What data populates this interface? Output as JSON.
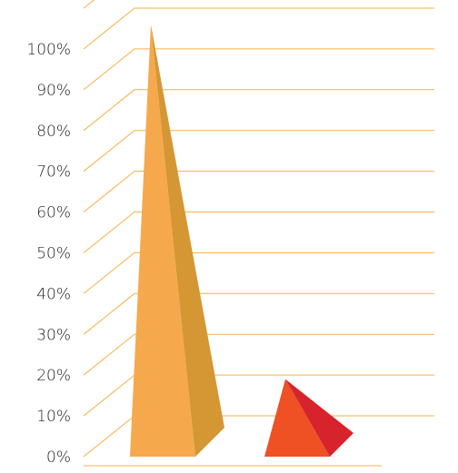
{
  "chart_data": {
    "type": "bar",
    "style": "3d-pyramid",
    "categories": [
      "",
      ""
    ],
    "values": [
      100,
      13
    ],
    "ylim": [
      0,
      100
    ],
    "y_ticks": [
      "0%",
      "10%",
      "20%",
      "30%",
      "40%",
      "50%",
      "60%",
      "70%",
      "80%",
      "90%",
      "100%"
    ],
    "grid": true,
    "legend": "none",
    "colors": {
      "grid": "#f7b046",
      "bar1_front": "#f6a94c",
      "bar1_side": "#d59634",
      "bar2_front": "#ef5024",
      "bar2_side": "#d7232b",
      "tick_text": "#231f20"
    }
  }
}
